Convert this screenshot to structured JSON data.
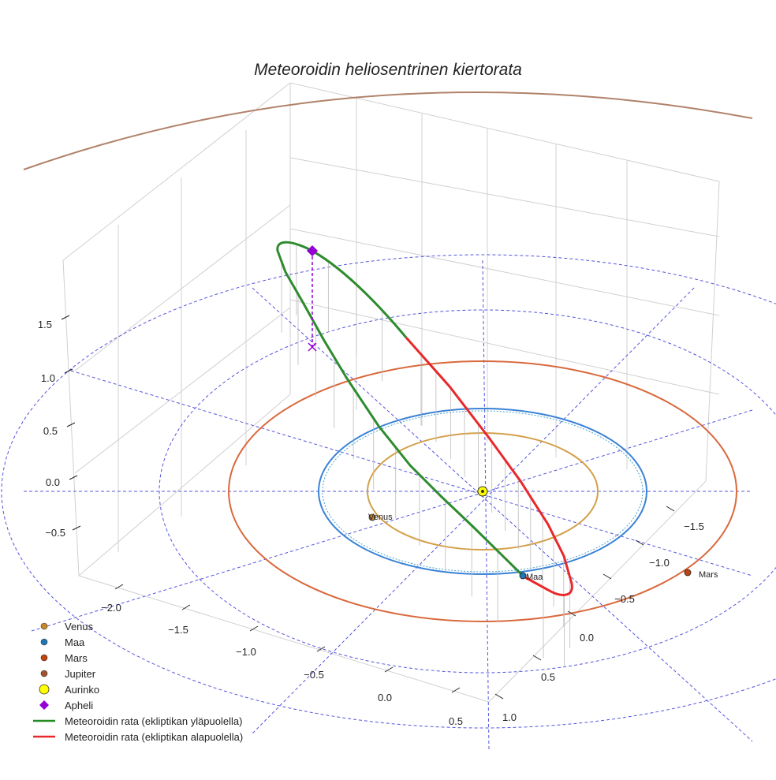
{
  "chart_data": {
    "type": "line3d",
    "title": "Meteoroidin heliosentrinen kiertorata",
    "axes": {
      "x_ticks": [
        "−2.0",
        "−1.5",
        "−1.0",
        "−0.5",
        "0.0",
        "0.5"
      ],
      "y_ticks": [
        "−1.5",
        "−1.0",
        "−0.5",
        "0.0",
        "0.5",
        "1.0"
      ],
      "z_ticks": [
        "1.5",
        "1.0",
        "0.5",
        "0.0",
        "−0.5"
      ]
    },
    "planets": [
      {
        "name": "Venus",
        "label": "Venus",
        "orbit_radius_au": 0.72,
        "color": "#c8882a",
        "orbit_color": "#d4a04a"
      },
      {
        "name": "Maa",
        "label": "Maa",
        "orbit_radius_au": 1.0,
        "color": "#1f77b4",
        "orbit_color": "#3b82d6"
      },
      {
        "name": "Mars",
        "label": "Mars",
        "orbit_radius_au": 1.52,
        "color": "#c1440e",
        "orbit_color": "#d9693d"
      },
      {
        "name": "Jupiter",
        "label": "",
        "orbit_radius_au": 5.2,
        "color": "#a0522d",
        "orbit_color": "#b0826a"
      }
    ],
    "sun": {
      "name": "Aurinko",
      "color": "#ffff00"
    },
    "aphelion": {
      "name": "Apheli",
      "color": "#9400d3"
    },
    "orbit_segments": [
      {
        "name": "Meteoroidin rata (ekliptikan yläpuolella)",
        "color": "#228b22"
      },
      {
        "name": "Meteoroidin rata (ekliptikan alapuolella)",
        "color": "#e8282a"
      }
    ],
    "legend": [
      {
        "label": "Venus",
        "marker": "circle",
        "color": "#c8882a"
      },
      {
        "label": "Maa",
        "marker": "circle",
        "color": "#1f77b4"
      },
      {
        "label": "Mars",
        "marker": "circle",
        "color": "#c1440e"
      },
      {
        "label": "Jupiter",
        "marker": "circle",
        "color": "#a0522d"
      },
      {
        "label": "Aurinko",
        "marker": "circle-big",
        "color": "#ffff00"
      },
      {
        "label": "Apheli",
        "marker": "diamond",
        "color": "#9400d3"
      },
      {
        "label": "Meteoroidin rata (ekliptikan yläpuolella)",
        "marker": "line",
        "color": "#228b22"
      },
      {
        "label": "Meteoroidin rata (ekliptikan alapuolella)",
        "marker": "line",
        "color": "#e8282a"
      }
    ]
  }
}
